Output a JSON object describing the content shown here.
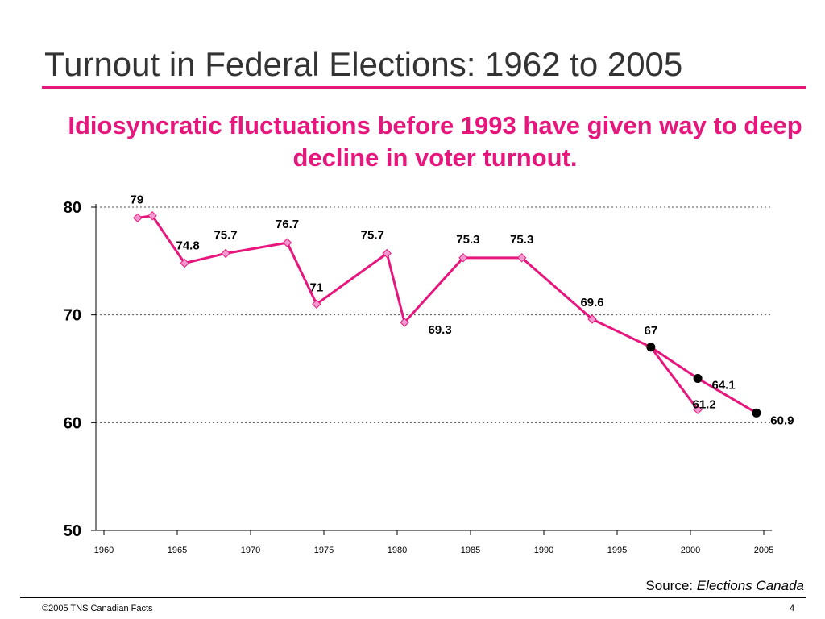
{
  "page": {
    "title": "Turnout in Federal Elections: 1962 to 2005",
    "subtitle": "Idiosyncratic fluctuations before 1993 have given way to deep decline in voter turnout.",
    "source_prefix": "Source: ",
    "source_name": "Elections Canada",
    "footer_left": "©2005 TNS Canadian Facts",
    "page_number": "4"
  },
  "colors": {
    "accent": "#e6167d",
    "marker_fill": "#f29ad0",
    "dark_marker": "#000000"
  },
  "chart_data": {
    "type": "line",
    "xlim": [
      1960,
      2005
    ],
    "ylim": [
      50,
      80
    ],
    "x_ticks": [
      "1960",
      "1965",
      "1970",
      "1975",
      "1980",
      "1985",
      "1990",
      "1995",
      "2000",
      "2005"
    ],
    "y_ticks": [
      "50",
      "60",
      "70",
      "80"
    ],
    "gridlines": [
      60,
      70,
      80
    ],
    "series": [
      {
        "marker": "diamond",
        "points": [
          {
            "x": 1962.3,
            "y": 79,
            "label": "79"
          },
          {
            "x": 1963.3,
            "y": 79.2,
            "label": ""
          },
          {
            "x": 1965.5,
            "y": 74.8,
            "label": "74.8"
          },
          {
            "x": 1968.3,
            "y": 75.7,
            "label": "75.7"
          },
          {
            "x": 1972.5,
            "y": 76.7,
            "label": "76.7"
          },
          {
            "x": 1974.5,
            "y": 71,
            "label": "71"
          },
          {
            "x": 1979.3,
            "y": 75.7,
            "label": "75.7"
          },
          {
            "x": 1980.5,
            "y": 69.3,
            "label": "69.3"
          },
          {
            "x": 1984.5,
            "y": 75.3,
            "label": "75.3"
          },
          {
            "x": 1988.5,
            "y": 75.3,
            "label": "75.3"
          },
          {
            "x": 1993.3,
            "y": 69.6,
            "label": "69.6"
          },
          {
            "x": 1997.3,
            "y": 67,
            "label": ""
          },
          {
            "x": 2000.5,
            "y": 61.2,
            "label": "61.2"
          }
        ]
      },
      {
        "marker": "circle",
        "points": [
          {
            "x": 1997.3,
            "y": 67,
            "label": "67"
          },
          {
            "x": 2000.5,
            "y": 64.1,
            "label": "64.1"
          },
          {
            "x": 2004.5,
            "y": 60.9,
            "label": "60.9"
          }
        ]
      }
    ]
  }
}
